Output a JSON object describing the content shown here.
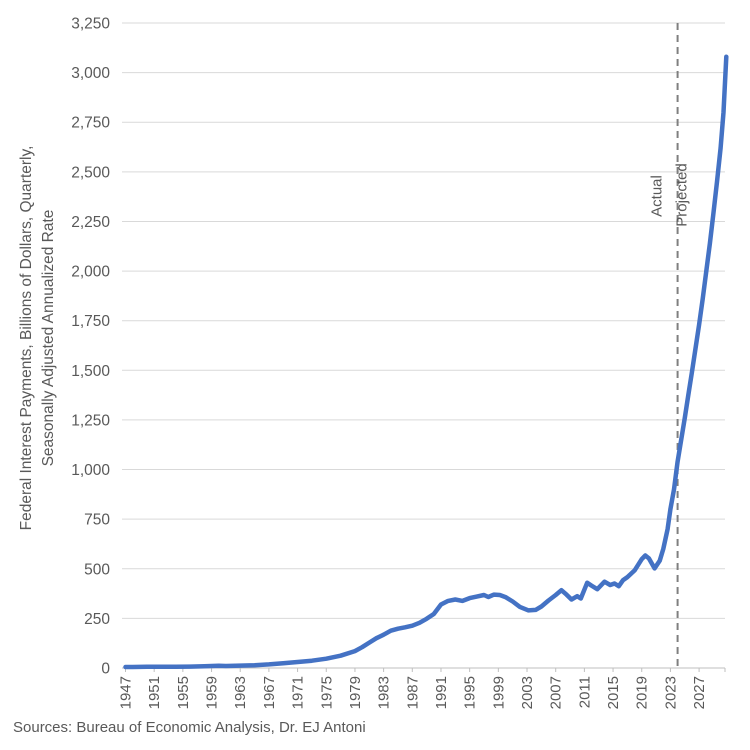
{
  "source_note": "Sources: Bureau of Economic Analysis, Dr. EJ Antoni",
  "y_axis": {
    "title_line1": "Federal Interest Payments, Billions of Dollars, Quarterly,",
    "title_line2": "Seasonally Adjusted Annualized Rate",
    "tick_values": [
      0,
      250,
      500,
      750,
      1000,
      1250,
      1500,
      1750,
      2000,
      2250,
      2500,
      2750,
      3000,
      3250
    ],
    "tick_labels": [
      "0",
      "250",
      "500",
      "750",
      "1,000",
      "1,250",
      "1,500",
      "1,750",
      "2,000",
      "2,250",
      "2,500",
      "2,750",
      "3,000",
      "3,250"
    ]
  },
  "x_axis": {
    "tick_years": [
      1947,
      1951,
      1955,
      1959,
      1963,
      1967,
      1971,
      1975,
      1979,
      1983,
      1987,
      1991,
      1995,
      1999,
      2003,
      2007,
      2011,
      2015,
      2019,
      2023,
      2027
    ],
    "tick_labels": [
      "1947",
      "1951",
      "1955",
      "1959",
      "1963",
      "1967",
      "1971",
      "1975",
      "1979",
      "1983",
      "1987",
      "1991",
      "1995",
      "1999",
      "2003",
      "2007",
      "2011",
      "2015",
      "2019",
      "2023",
      "2027"
    ]
  },
  "chart_data": {
    "type": "line",
    "title": "",
    "xlabel": "",
    "ylabel": "Federal Interest Payments, Billions of Dollars, Quarterly, Seasonally Adjusted Annualized Rate",
    "xlim": [
      1946.5,
      2031.2
    ],
    "ylim": [
      0,
      3250
    ],
    "grid": true,
    "gridline_color": "#D9D9D9",
    "axis_color": "#BFBFBF",
    "label_color": "#595959",
    "series": [
      {
        "name": "Federal Interest Payments",
        "color": "#4472C4",
        "points": [
          [
            1947,
            5
          ],
          [
            1948,
            5
          ],
          [
            1950,
            6
          ],
          [
            1952,
            6
          ],
          [
            1954,
            6
          ],
          [
            1956,
            7
          ],
          [
            1958,
            9
          ],
          [
            1960,
            11
          ],
          [
            1961,
            10
          ],
          [
            1963,
            12
          ],
          [
            1965,
            14
          ],
          [
            1967,
            18
          ],
          [
            1969,
            24
          ],
          [
            1971,
            30
          ],
          [
            1973,
            37
          ],
          [
            1975,
            47
          ],
          [
            1977,
            62
          ],
          [
            1979,
            85
          ],
          [
            1980,
            105
          ],
          [
            1981,
            128
          ],
          [
            1982,
            150
          ],
          [
            1983,
            168
          ],
          [
            1984,
            188
          ],
          [
            1985,
            198
          ],
          [
            1986,
            205
          ],
          [
            1987,
            213
          ],
          [
            1988,
            228
          ],
          [
            1989,
            248
          ],
          [
            1990,
            272
          ],
          [
            1991,
            320
          ],
          [
            1992,
            338
          ],
          [
            1993,
            345
          ],
          [
            1994,
            338
          ],
          [
            1995,
            352
          ],
          [
            1996,
            360
          ],
          [
            1997,
            368
          ],
          [
            1997.6,
            358
          ],
          [
            1998.4,
            370
          ],
          [
            1999.2,
            368
          ],
          [
            2000,
            357
          ],
          [
            2001,
            335
          ],
          [
            2002,
            308
          ],
          [
            2003.2,
            290
          ],
          [
            2004.2,
            293
          ],
          [
            2005,
            310
          ],
          [
            2006,
            340
          ],
          [
            2007,
            368
          ],
          [
            2007.8,
            392
          ],
          [
            2008.5,
            370
          ],
          [
            2009.2,
            345
          ],
          [
            2010,
            362
          ],
          [
            2010.5,
            350
          ],
          [
            2011.4,
            430
          ],
          [
            2012,
            415
          ],
          [
            2012.8,
            397
          ],
          [
            2013.8,
            435
          ],
          [
            2014.6,
            418
          ],
          [
            2015.2,
            426
          ],
          [
            2015.8,
            412
          ],
          [
            2016.4,
            443
          ],
          [
            2017,
            458
          ],
          [
            2018,
            492
          ],
          [
            2019,
            548
          ],
          [
            2019.5,
            567
          ],
          [
            2020,
            552
          ],
          [
            2020.8,
            502
          ],
          [
            2021.5,
            540
          ],
          [
            2022,
            600
          ],
          [
            2022.6,
            700
          ],
          [
            2023,
            800
          ],
          [
            2023.5,
            900
          ],
          [
            2024,
            1040
          ],
          [
            2024.5,
            1150
          ],
          [
            2025,
            1260
          ],
          [
            2025.5,
            1375
          ],
          [
            2026,
            1490
          ],
          [
            2026.5,
            1610
          ],
          [
            2027,
            1730
          ],
          [
            2027.5,
            1860
          ],
          [
            2028,
            2000
          ],
          [
            2028.5,
            2140
          ],
          [
            2029,
            2290
          ],
          [
            2029.5,
            2450
          ],
          [
            2030,
            2620
          ],
          [
            2030.4,
            2800
          ],
          [
            2030.8,
            3080
          ]
        ]
      }
    ],
    "annotations": {
      "divider_year": 2024,
      "divider_color": "#7F7F7F",
      "left_label": "Actual",
      "right_label": "Projected"
    }
  }
}
